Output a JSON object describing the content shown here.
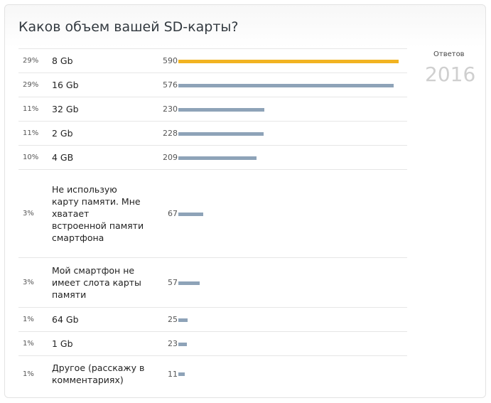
{
  "poll": {
    "title": "Каков объем вашей SD-карты?",
    "total_label": "Ответов",
    "total_value": "2016"
  },
  "chart_data": {
    "type": "bar",
    "orientation": "horizontal",
    "title": "Каков объем вашей SD-карты?",
    "categories": [
      "8 Gb",
      "16 Gb",
      "32 Gb",
      "2 Gb",
      "4 GB",
      "Не использую карту памяти. Мне хватает встроенной памяти смартфона",
      "Мой смартфон не имеет слота карты памяти",
      "64 Gb",
      "1 Gb",
      "Другое (расскажу в комментариях)"
    ],
    "values": [
      590,
      576,
      230,
      228,
      209,
      67,
      57,
      25,
      23,
      11
    ],
    "percents": [
      "29%",
      "29%",
      "11%",
      "11%",
      "10%",
      "3%",
      "3%",
      "1%",
      "1%",
      "1%"
    ],
    "max_value": 590,
    "colors": {
      "lead": "#f2b321",
      "default": "#8ea3b8"
    }
  }
}
